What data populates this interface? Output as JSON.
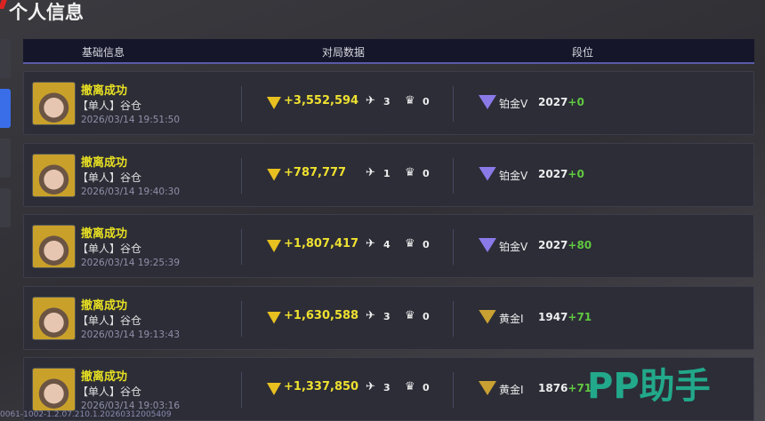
{
  "title": "个人信息",
  "headers": [
    "基础信息",
    "对局数据",
    "段位"
  ],
  "rows": [
    {
      "status": "撤离成功",
      "mode": "【单人】谷仓",
      "time": "2026/03/14 19:51:50",
      "gain": "+3,552,594",
      "kills": "3",
      "assists": "0",
      "rank": "铂金V",
      "score": "2027",
      "delta": "+0",
      "tier": "platinum"
    },
    {
      "status": "撤离成功",
      "mode": "【单人】谷仓",
      "time": "2026/03/14 19:40:30",
      "gain": "+787,777",
      "kills": "1",
      "assists": "0",
      "rank": "铂金V",
      "score": "2027",
      "delta": "+0",
      "tier": "platinum"
    },
    {
      "status": "撤离成功",
      "mode": "【单人】谷仓",
      "time": "2026/03/14 19:25:39",
      "gain": "+1,807,417",
      "kills": "4",
      "assists": "0",
      "rank": "铂金V",
      "score": "2027",
      "delta": "+80",
      "tier": "platinum"
    },
    {
      "status": "撤离成功",
      "mode": "【单人】谷仓",
      "time": "2026/03/14 19:13:43",
      "gain": "+1,630,588",
      "kills": "3",
      "assists": "0",
      "rank": "黄金I",
      "score": "1947",
      "delta": "+71",
      "tier": "gold"
    },
    {
      "status": "撤离成功",
      "mode": "【单人】谷仓",
      "time": "2026/03/14 19:03:16",
      "gain": "+1,337,850",
      "kills": "3",
      "assists": "0",
      "rank": "黄金I",
      "score": "1876",
      "delta": "+71",
      "tier": "gold"
    }
  ],
  "colors": {
    "platinum": "#8a7ae8",
    "gold": "#c9a032",
    "success": "#e8e022",
    "delta": "#60c840"
  },
  "watermark": "PP助手",
  "version": "0061-1002-1.2.07.210.1.20260312005409"
}
